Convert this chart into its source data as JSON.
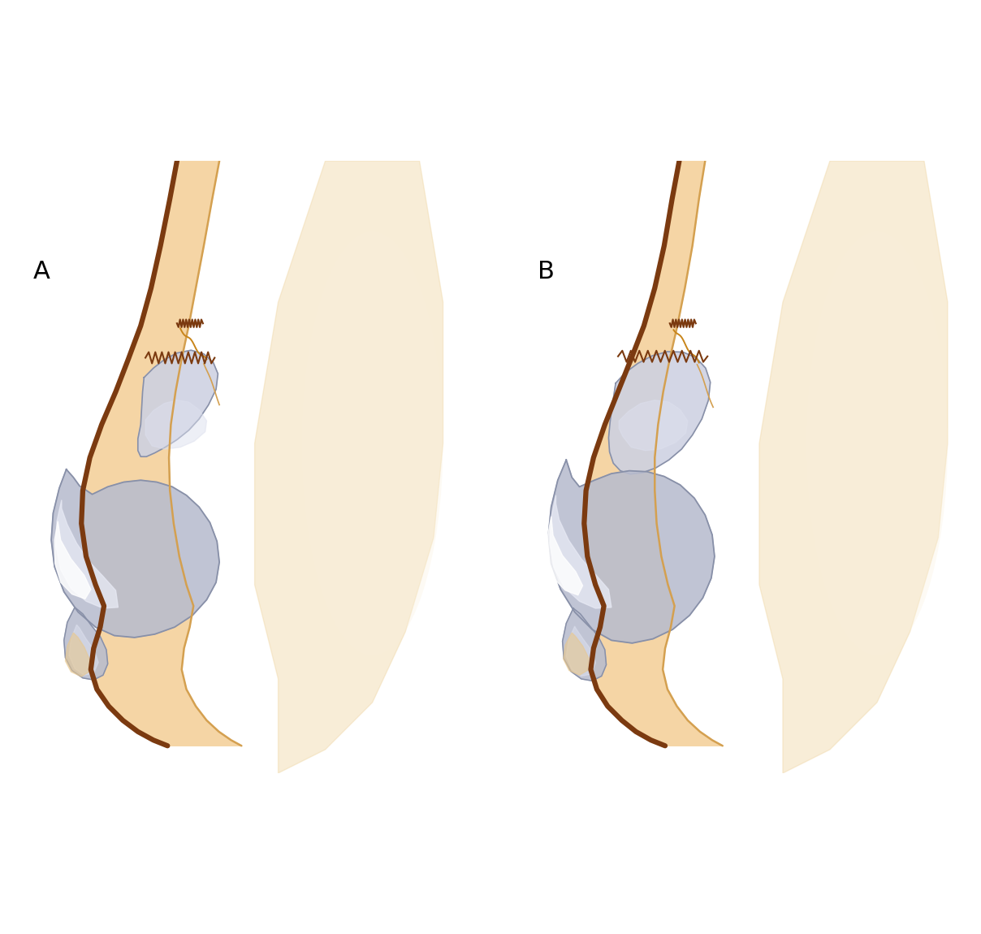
{
  "bg": "#ffffff",
  "skin_fill": "#F5D5A5",
  "skin_fill_inner": "#F8E0B8",
  "skin_dark": "#7B3A10",
  "skin_medium": "#C8851A",
  "skin_inner": "#D4A050",
  "cartilage_main": "#B8BCCE",
  "cartilage_light": "#CDD1E2",
  "cartilage_highlight": "#DDE0EE",
  "cartilage_white": "#E8EAF5",
  "cartilage_outline": "#8890A8",
  "face_bg": "#F0D8A8",
  "face_light": "#FAF0DC",
  "nostril_fill": "#E8C890",
  "label_A": "A",
  "label_B": "B",
  "label_size": 22
}
